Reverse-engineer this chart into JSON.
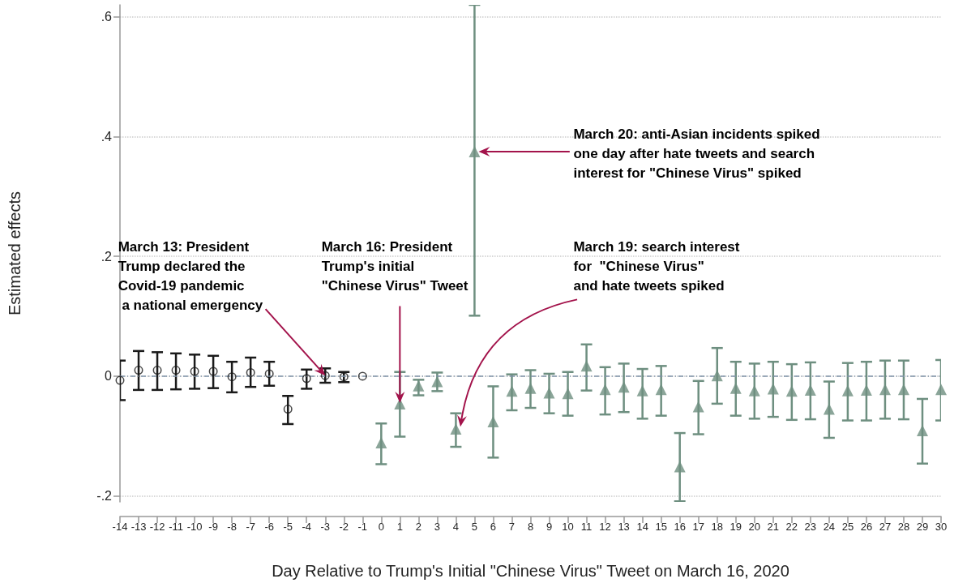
{
  "chart_data": {
    "type": "scatter",
    "xlabel": "Day Relative to Trump's Initial \"Chinese Virus\" Tweet on March 16, 2020",
    "ylabel": "Estimated effects",
    "xlim": [
      -14,
      30
    ],
    "xticks": [
      -14,
      -13,
      -12,
      -11,
      -10,
      -9,
      -8,
      -7,
      -6,
      -5,
      -4,
      -3,
      -2,
      -1,
      0,
      1,
      2,
      3,
      4,
      5,
      6,
      7,
      8,
      9,
      10,
      11,
      12,
      13,
      14,
      15,
      16,
      17,
      18,
      19,
      20,
      21,
      22,
      23,
      24,
      25,
      26,
      27,
      28,
      29,
      30
    ],
    "ylim": [
      -0.21,
      0.62
    ],
    "yticks": [
      {
        "value": -0.2,
        "label": "-.2"
      },
      {
        "value": 0,
        "label": "0"
      },
      {
        "value": 0.2,
        "label": ".2"
      },
      {
        "value": 0.4,
        "label": ".4"
      },
      {
        "value": 0.6,
        "label": ".6"
      }
    ],
    "grid": "y",
    "series": [
      {
        "type": "scatter",
        "marker": "circle",
        "color": "#1a1a1a",
        "x": [
          -14,
          -13,
          -12,
          -11,
          -10,
          -9,
          -8,
          -7,
          -6,
          -5,
          -4,
          -3,
          -2,
          -1
        ],
        "values": [
          -0.007,
          0.01,
          0.01,
          0.01,
          0.008,
          0.008,
          -0.001,
          0.006,
          0.004,
          -0.055,
          -0.004,
          0.001,
          -0.001,
          0
        ],
        "errors": [
          [
            -0.04,
            0.026
          ],
          [
            -0.023,
            0.042
          ],
          [
            -0.023,
            0.04
          ],
          [
            -0.022,
            0.038
          ],
          [
            -0.021,
            0.036
          ],
          [
            -0.02,
            0.034
          ],
          [
            -0.027,
            0.024
          ],
          [
            -0.018,
            0.031
          ],
          [
            -0.016,
            0.024
          ],
          [
            -0.08,
            -0.033
          ],
          [
            -0.021,
            0.011
          ],
          [
            -0.011,
            0.013
          ],
          [
            -0.01,
            0.007
          ],
          null
        ]
      },
      {
        "type": "scatter",
        "marker": "triangle",
        "color": "#6e8f80",
        "x": [
          0,
          1,
          2,
          3,
          4,
          5,
          6,
          7,
          8,
          9,
          10,
          11,
          12,
          13,
          14,
          15,
          16,
          17,
          18,
          19,
          20,
          21,
          22,
          23,
          24,
          25,
          26,
          27,
          28,
          29,
          30
        ],
        "values": [
          -0.111,
          -0.046,
          -0.016,
          -0.009,
          -0.088,
          0.375,
          -0.076,
          -0.025,
          -0.02,
          -0.028,
          -0.029,
          0.017,
          -0.022,
          -0.018,
          -0.024,
          -0.022,
          -0.151,
          -0.051,
          0.001,
          -0.02,
          -0.024,
          -0.021,
          -0.025,
          -0.023,
          -0.055,
          -0.024,
          -0.023,
          -0.022,
          -0.022,
          -0.091,
          -0.022
        ],
        "errors": [
          [
            -0.147,
            -0.079
          ],
          [
            -0.101,
            0.007
          ],
          [
            -0.032,
            -0.006
          ],
          [
            -0.025,
            0.006
          ],
          [
            -0.118,
            -0.062
          ],
          [
            0.101,
            0.62
          ],
          [
            -0.136,
            -0.017
          ],
          [
            -0.057,
            0.003
          ],
          [
            -0.053,
            0.01
          ],
          [
            -0.062,
            0.004
          ],
          [
            -0.066,
            0.007
          ],
          [
            -0.024,
            0.053
          ],
          [
            -0.064,
            0.015
          ],
          [
            -0.06,
            0.021
          ],
          [
            -0.071,
            0.012
          ],
          [
            -0.066,
            0.017
          ],
          [
            -0.209,
            -0.095
          ],
          [
            -0.097,
            -0.008
          ],
          [
            -0.046,
            0.047
          ],
          [
            -0.066,
            0.024
          ],
          [
            -0.071,
            0.021
          ],
          [
            -0.068,
            0.024
          ],
          [
            -0.073,
            0.02
          ],
          [
            -0.072,
            0.023
          ],
          [
            -0.103,
            -0.009
          ],
          [
            -0.074,
            0.022
          ],
          [
            -0.074,
            0.024
          ],
          [
            -0.071,
            0.026
          ],
          [
            -0.072,
            0.026
          ],
          [
            -0.146,
            -0.038
          ],
          [
            -0.074,
            0.027
          ]
        ]
      }
    ],
    "ref_lines": [
      {
        "axis": "y",
        "value": 0,
        "color": "#7f93a8",
        "line_style": "dashed"
      }
    ],
    "annotations": [
      {
        "text": "March 13: President\nTrump declared the\nCovid-19 pandemic\n a national emergency",
        "x": -3,
        "y": 0.001
      },
      {
        "text": "March 16: President\nTrump's initial\n\"Chinese Virus\" Tweet",
        "x": 1,
        "y": -0.046
      },
      {
        "text": "March 19: search interest\nfor  \"Chinese Virus\"\nand hate tweets spiked",
        "x": 4,
        "y": -0.088
      },
      {
        "text": "March 20: anti-Asian incidents spiked\none day after hate tweets and search\ninterest for \"Chinese Virus\" spiked",
        "x": 5,
        "y": 0.375
      }
    ]
  }
}
